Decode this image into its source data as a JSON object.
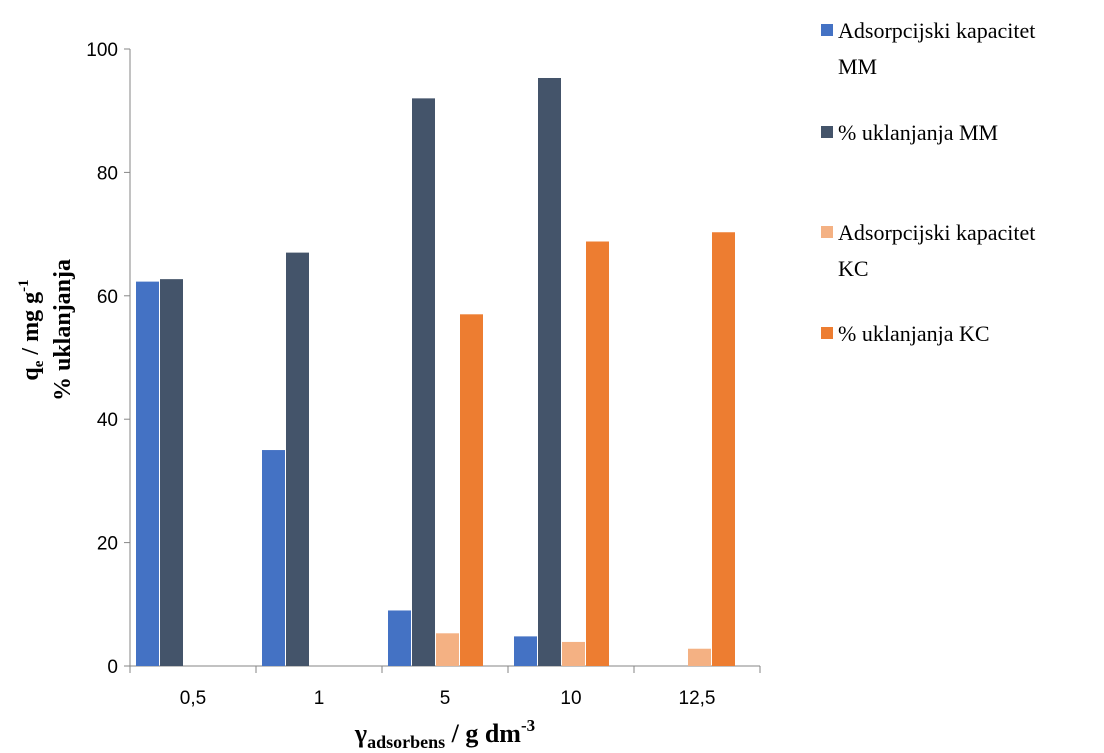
{
  "chart_data": {
    "type": "bar",
    "categories": [
      "0,5",
      "1",
      "5",
      "10",
      "12,5"
    ],
    "series": [
      {
        "name": "Adsorpcijski kapacitet MM",
        "color": "#4472C4",
        "values": [
          62.3,
          35.0,
          9.0,
          4.8,
          null
        ]
      },
      {
        "name": "% uklanjanja MM",
        "color": "#44546A",
        "values": [
          62.7,
          67.0,
          92.0,
          95.3,
          null
        ]
      },
      {
        "name": "Adsorpcijski kapacitet KC",
        "color": "#F4B183",
        "values": [
          null,
          null,
          5.3,
          3.9,
          2.8
        ]
      },
      {
        "name": "% uklanjanja KC",
        "color": "#ED7D31",
        "values": [
          null,
          null,
          57.0,
          68.8,
          70.3
        ]
      }
    ],
    "ylim": [
      0,
      100
    ],
    "yticks": [
      0,
      20,
      40,
      60,
      80,
      100
    ],
    "ylabel": {
      "line1_main": "q",
      "line1_sub": "e",
      "line1_rest": " / mg g",
      "line1_sup": "-1",
      "line2": "% uklanjanja"
    },
    "xlabel": {
      "main": "γ",
      "sub": "adsorbens",
      "rest": " / g dm",
      "sup": "-3"
    },
    "legend": {
      "position": "right",
      "items": [
        {
          "line1": "Adsorpcijski kapacitet",
          "line2": "MM"
        },
        {
          "line1": "% uklanjanja MM",
          "line2": ""
        },
        {
          "line1": "Adsorpcijski kapacitet",
          "line2": "KC"
        },
        {
          "line1": "% uklanjanja KC",
          "line2": ""
        }
      ]
    },
    "grid": false
  }
}
